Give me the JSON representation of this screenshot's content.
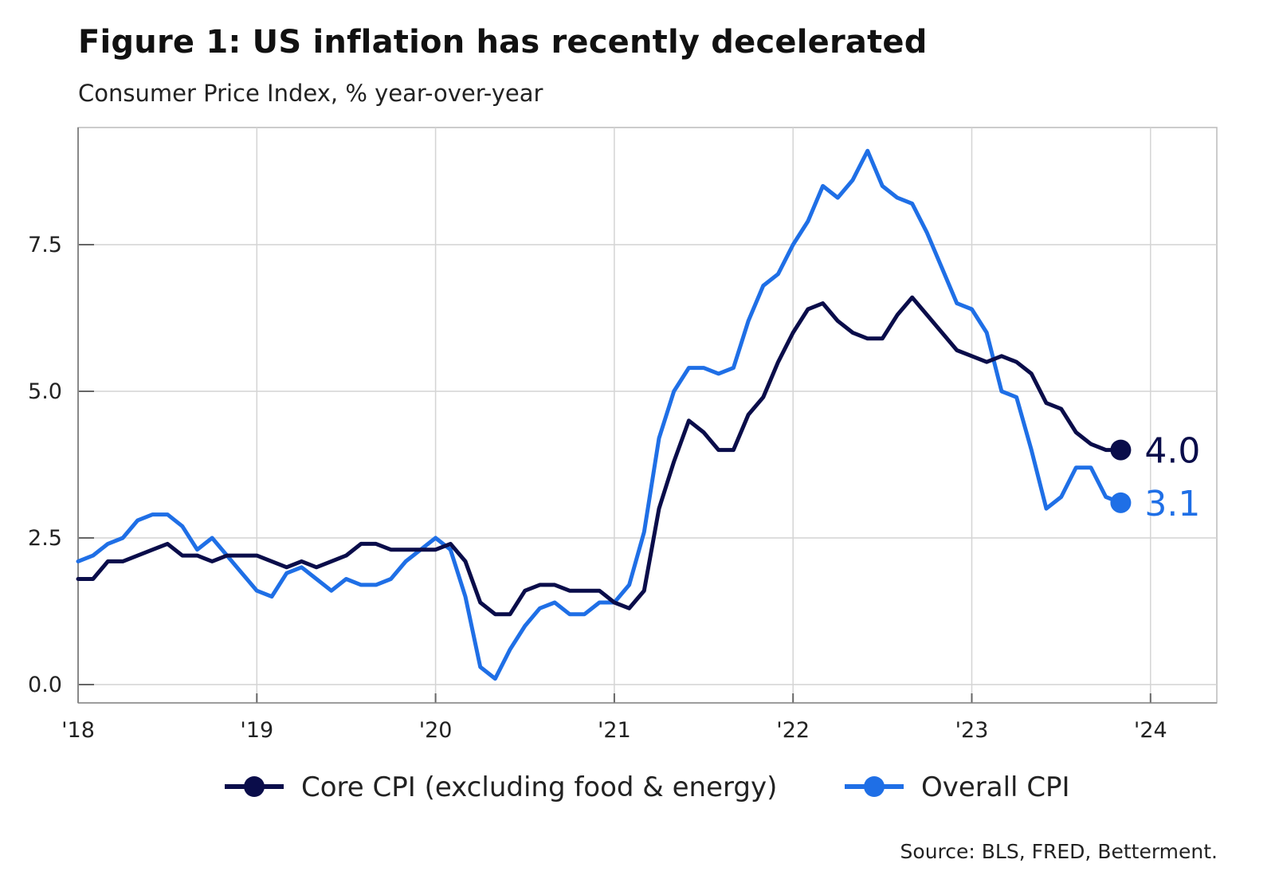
{
  "chart_data": {
    "type": "line",
    "title": "Figure 1: US inflation has recently decelerated",
    "subtitle": "Consumer Price Index, % year-over-year",
    "source": "Source: BLS, FRED, Betterment.",
    "xlabel": "",
    "ylabel": "",
    "x_start": "2018-01",
    "x_frequency": "monthly",
    "x_ticks": [
      "'18",
      "'19",
      "'20",
      "'21",
      "'22",
      "'23",
      "'24"
    ],
    "y_ticks": [
      "0.0",
      "2.5",
      "5.0",
      "7.5"
    ],
    "ylim": [
      -0.3,
      9.5
    ],
    "grid": true,
    "legend_position": "bottom",
    "series": [
      {
        "name": "Core CPI (excluding food & energy)",
        "color": "#0a0d4a",
        "end_label": "4.0",
        "values": [
          1.8,
          1.8,
          2.1,
          2.1,
          2.2,
          2.3,
          2.4,
          2.2,
          2.2,
          2.1,
          2.2,
          2.2,
          2.2,
          2.1,
          2.0,
          2.1,
          2.0,
          2.1,
          2.2,
          2.4,
          2.4,
          2.3,
          2.3,
          2.3,
          2.3,
          2.4,
          2.1,
          1.4,
          1.2,
          1.2,
          1.6,
          1.7,
          1.7,
          1.6,
          1.6,
          1.6,
          1.4,
          1.3,
          1.6,
          3.0,
          3.8,
          4.5,
          4.3,
          4.0,
          4.0,
          4.6,
          4.9,
          5.5,
          6.0,
          6.4,
          6.5,
          6.2,
          6.0,
          5.9,
          5.9,
          6.3,
          6.6,
          6.3,
          6.0,
          5.7,
          5.6,
          5.5,
          5.6,
          5.5,
          5.3,
          4.8,
          4.7,
          4.3,
          4.1,
          4.0,
          4.0
        ]
      },
      {
        "name": "Overall CPI",
        "color": "#1f6fe6",
        "end_label": "3.1",
        "values": [
          2.1,
          2.2,
          2.4,
          2.5,
          2.8,
          2.9,
          2.9,
          2.7,
          2.3,
          2.5,
          2.2,
          1.9,
          1.6,
          1.5,
          1.9,
          2.0,
          1.8,
          1.6,
          1.8,
          1.7,
          1.7,
          1.8,
          2.1,
          2.3,
          2.5,
          2.3,
          1.5,
          0.3,
          0.1,
          0.6,
          1.0,
          1.3,
          1.4,
          1.2,
          1.2,
          1.4,
          1.4,
          1.7,
          2.6,
          4.2,
          5.0,
          5.4,
          5.4,
          5.3,
          5.4,
          6.2,
          6.8,
          7.0,
          7.5,
          7.9,
          8.5,
          8.3,
          8.6,
          9.1,
          8.5,
          8.3,
          8.2,
          7.7,
          7.1,
          6.5,
          6.4,
          6.0,
          5.0,
          4.9,
          4.0,
          3.0,
          3.2,
          3.7,
          3.7,
          3.2,
          3.1
        ]
      }
    ]
  }
}
